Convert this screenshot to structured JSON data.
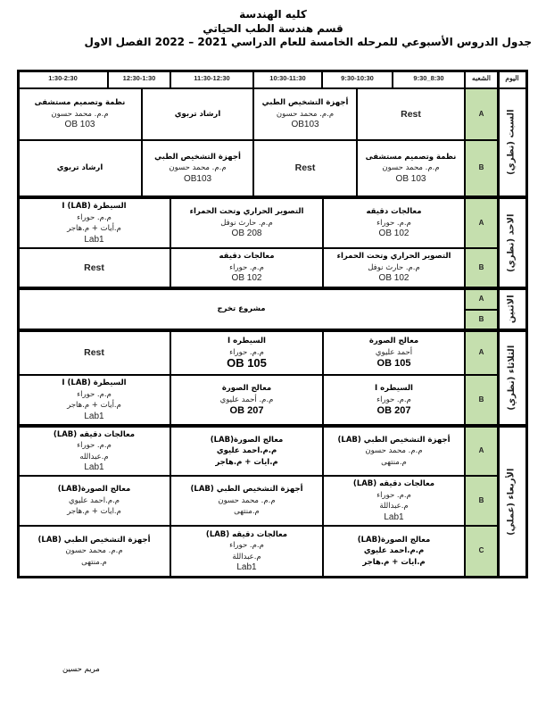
{
  "header": {
    "college": "كليه الهندسة",
    "department": "قسم هندسة الطب الحياتي",
    "schedule_title": "جدول الدروس الأسبوعي للمرحله الخامسة للعام الدراسي 2021 – 2022 الفصل الاول"
  },
  "columns": {
    "day": "اليوم",
    "section": "الشعبه",
    "times": [
      "8:30_9:30",
      "9:30-10:30",
      "10:30-11:30",
      "11:30-12:30",
      "12:30-1:30",
      "1:30-2:30"
    ]
  },
  "days": [
    "السبت (نظري)",
    "الاحد (نظري)",
    "الاثنين",
    "الثلاثاء (نظري)",
    "الأربعاء (عملي)"
  ],
  "sections": {
    "sat_a": "A",
    "sat_b": "B",
    "sun_a": "A",
    "sun_b": "B",
    "mon_a": "A",
    "mon_b": "B",
    "tue_a": "A",
    "tue_b": "B",
    "wed_a": "A",
    "wed_b": "B",
    "wed_c": "C"
  },
  "section_color": "#c5dfae",
  "cells": {
    "sat_a_1": [
      "Rest"
    ],
    "sat_a_2": [
      "أجهزة التشخيص الطبي",
      "م.م. محمد حسون",
      "OB103"
    ],
    "sat_a_3": [
      "ارشاد تربوي"
    ],
    "sat_a_4": [
      "نظمة وتصميم مستشفى",
      "م.م. محمد حسون",
      "OB 103"
    ],
    "sat_b_1": [
      "نظمة وتصميم مستشفى",
      "م.م. محمد حسون",
      "OB 103"
    ],
    "sat_b_2": [
      "Rest"
    ],
    "sat_b_3": [
      "أجهزة التشخيص الطبي",
      "م.م. محمد حسون",
      "OB103"
    ],
    "sat_b_4": [
      "ارشاد تربوي"
    ],
    "sun_a_1": [
      "معالجات دقيقه",
      "م.م. حوراء",
      "OB 102"
    ],
    "sun_a_2": [
      "التصوير الحراري وتحت الحمراء",
      "م.م. حارث نوفل",
      "OB 208"
    ],
    "sun_a_3": [
      "السيطرة I (LAB)",
      "م.م. حوراء",
      "م.أيات + م.هاجر",
      "Lab1"
    ],
    "sun_b_1": [
      "التصوير الحراري وتحت الحمراء",
      "م.م. حارث نوفل",
      "OB 102"
    ],
    "sun_b_2": [
      "معالجات دقيقه",
      "م.م. حوراء",
      "OB 102"
    ],
    "sun_b_3": [
      "Rest"
    ],
    "mon_1": [
      "مشروع تخرج"
    ],
    "tue_a_1": [
      "معالج الصورة",
      "أحمد عليوي",
      "OB 105"
    ],
    "tue_a_2": [
      "السيطره I",
      "م.م. حوراء",
      "OB 105"
    ],
    "tue_a_3": [
      "Rest"
    ],
    "tue_b_1": [
      "السيطره I",
      "م.م. حوراء",
      "OB 207"
    ],
    "tue_b_2": [
      "معالج الصورة",
      "م.م. أحمد عليوي",
      "OB 207"
    ],
    "tue_b_3": [
      "السيطرة I (LAB)",
      "م.م. حوراء",
      "م.أيات + م.هاجر",
      "Lab1"
    ],
    "wed_a_1": [
      "أجهزة التشخيص الطبي (LAB)",
      "م.م. محمد حسون",
      "م.منتهى"
    ],
    "wed_a_2": [
      "معالج الصورة(LAB)",
      "م.م.احمد عليوي",
      "م.ايات + م.هاجر"
    ],
    "wed_a_3": [
      "معالجات دقيقه (LAB)",
      "م.م. حوراء",
      "م.عبدالله",
      "Lab1"
    ],
    "wed_b_1": [
      "معالجات دقيقه (LAB)",
      "م.م. حوراء",
      "م.عبداللة",
      "Lab1"
    ],
    "wed_b_2": [
      "أجهزة التشخيص الطبي (LAB)",
      "م.م. محمد حسون",
      "م.منتهى"
    ],
    "wed_b_3": [
      "معالج الصورة(LAB)",
      "م.م.احمد عليوي",
      "م.ايات + م.هاجر"
    ],
    "wed_c_1": [
      "معالج الصورة(LAB)",
      "م.م.احمد عليوي",
      "م.ايات + م.هاجر"
    ],
    "wed_c_2": [
      "معالجات دقيقه (LAB)",
      "م.م. حوراء",
      "م.عبداللة",
      "Lab1"
    ],
    "wed_c_3": [
      "أجهزة التشخيص الطبي (LAB)",
      "م.م. محمد حسون",
      "م.منتهى"
    ]
  },
  "signature": "مريم حسين"
}
